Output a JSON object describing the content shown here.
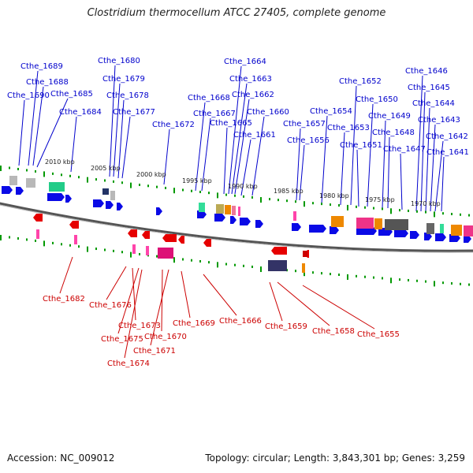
{
  "title": "Clostridium thermocellum ATCC 27405, complete genome",
  "footer": {
    "accession": "Accession: NC_009012",
    "summary": "Topology: circular; Length: 3,843,301 bp; Genes: 3,259"
  },
  "colors": {
    "forward_gene": "#0a0ae6",
    "reverse_gene": "#e60000",
    "forward_label": "#0000cc",
    "reverse_label": "#cc0000",
    "backbone": "#888888",
    "tick": "#009900"
  },
  "scale_ticks": [
    "2010 kbp",
    "2005 kbp",
    "2000 kbp",
    "1995 kbp",
    "1990 kbp",
    "1985 kbp",
    "1980 kbp",
    "1975 kbp",
    "1970 kbp"
  ],
  "forward_genes": [
    "Cthe_1689",
    "Cthe_1688",
    "Cthe_1690",
    "Cthe_1685",
    "Cthe_1684",
    "Cthe_1680",
    "Cthe_1679",
    "Cthe_1678",
    "Cthe_1677",
    "Cthe_1672",
    "Cthe_1668",
    "Cthe_1667",
    "Cthe_1664",
    "Cthe_1663",
    "Cthe_1662",
    "Cthe_1665",
    "Cthe_1660",
    "Cthe_1661",
    "Cthe_1657",
    "Cthe_1656",
    "Cthe_1654",
    "Cthe_1653",
    "Cthe_1652",
    "Cthe_1651",
    "Cthe_1650",
    "Cthe_1649",
    "Cthe_1648",
    "Cthe_1647",
    "Cthe_1646",
    "Cthe_1645",
    "Cthe_1644",
    "Cthe_1643",
    "Cthe_1642",
    "Cthe_1641"
  ],
  "reverse_genes": [
    "Cthe_1682",
    "Cthe_1676",
    "Cthe_1673",
    "Cthe_1675",
    "Cthe_1670",
    "Cthe_1671",
    "Cthe_1674",
    "Cthe_1669",
    "Cthe_1666",
    "Cthe_1659",
    "Cthe_1658",
    "Cthe_1655"
  ]
}
